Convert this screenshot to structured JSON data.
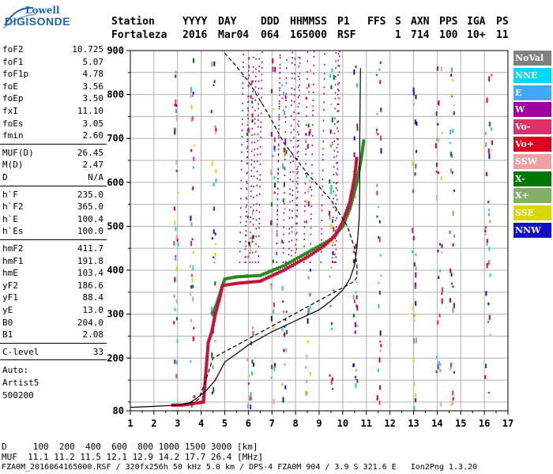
{
  "logo": {
    "line1": "Lowell",
    "line2": "DIGISONDE"
  },
  "header": {
    "labels": [
      "Station",
      "YYYY",
      "DAY",
      "DDD",
      "HHMMSS",
      "P1",
      "FFS",
      "S",
      "AXN",
      "PPS",
      "IGA",
      "PS"
    ],
    "values": [
      "Fortaleza",
      "2016",
      "Mar04",
      "064",
      "165000",
      "RSF",
      "1",
      "714",
      "100",
      "10+",
      "11"
    ]
  },
  "params": {
    "group1": [
      {
        "label": "foF2",
        "value": "10.725"
      },
      {
        "label": "foF1",
        "value": "5.07"
      },
      {
        "label": "foF1p",
        "value": "4.78"
      },
      {
        "label": "foE",
        "value": "3.56"
      },
      {
        "label": "foEp",
        "value": "3.50"
      },
      {
        "label": "fxI",
        "value": "11.10"
      },
      {
        "label": "foEs",
        "value": "3.05"
      },
      {
        "label": "fmin",
        "value": "2.60"
      }
    ],
    "group2": [
      {
        "label": "MUF(D)",
        "value": "26.45"
      },
      {
        "label": "M(D)",
        "value": "2.47"
      },
      {
        "label": "D",
        "value": "N/A"
      }
    ],
    "group3": [
      {
        "label": "h`F",
        "value": "235.0"
      },
      {
        "label": "h`F2",
        "value": "365.0"
      },
      {
        "label": "h`E",
        "value": "100.4"
      },
      {
        "label": "h`Es",
        "value": "100.0"
      }
    ],
    "group4": [
      {
        "label": "hmF2",
        "value": "411.7"
      },
      {
        "label": "hmF1",
        "value": "191.8"
      },
      {
        "label": "hmE",
        "value": "103.4"
      },
      {
        "label": "yF2",
        "value": "186.6"
      },
      {
        "label": "yF1",
        "value": "88.4"
      },
      {
        "label": "yE",
        "value": "13.0"
      },
      {
        "label": "B0",
        "value": "204.0"
      },
      {
        "label": "B1",
        "value": "2.08"
      }
    ],
    "clevel": {
      "label": "C-level",
      "value": "33"
    },
    "auto_label": "Auto:",
    "auto_value": "Artist5",
    "auto_version": "500200"
  },
  "legend": [
    {
      "label": "NoVal",
      "bg": "#808080",
      "fg": "#ffffff"
    },
    {
      "label": "NNE",
      "bg": "#00d8ff",
      "fg": "#ffffff"
    },
    {
      "label": "E",
      "bg": "#40a8ff",
      "fg": "#ffffff"
    },
    {
      "label": "W",
      "bg": "#a000a0",
      "fg": "#ffffff"
    },
    {
      "label": "Vo-",
      "bg": "#e0306a",
      "fg": "#ffffff"
    },
    {
      "label": "Vo+",
      "bg": "#e00020",
      "fg": "#ffffff"
    },
    {
      "label": "SSW",
      "bg": "#f0a0a0",
      "fg": "#ffffff"
    },
    {
      "label": "X-",
      "bg": "#007800",
      "fg": "#ffffff"
    },
    {
      "label": "X+",
      "bg": "#80b060",
      "fg": "#ffffff"
    },
    {
      "label": "SSE",
      "bg": "#d8d800",
      "fg": "#ffffff"
    },
    {
      "label": "NNW",
      "bg": "#1010c8",
      "fg": "#ffffff"
    }
  ],
  "chart_data": {
    "type": "scatter",
    "xlim": [
      1,
      17
    ],
    "ylim": [
      80,
      900
    ],
    "x_ticks": [
      1,
      2,
      3,
      4,
      5,
      6,
      7,
      8,
      9,
      10,
      11,
      12,
      13,
      14,
      15,
      16,
      17
    ],
    "y_ticks": [
      80,
      200,
      300,
      400,
      500,
      600,
      700,
      800,
      900
    ],
    "grid": true,
    "trace_o": [
      [
        2.8,
        93
      ],
      [
        3.2,
        93
      ],
      [
        3.6,
        96
      ],
      [
        4.1,
        100
      ],
      [
        4.3,
        235
      ],
      [
        4.45,
        260
      ],
      [
        4.6,
        300
      ],
      [
        4.8,
        340
      ],
      [
        4.9,
        365
      ],
      [
        5.5,
        370
      ],
      [
        6.5,
        375
      ],
      [
        7.5,
        400
      ],
      [
        8.5,
        430
      ],
      [
        9.2,
        455
      ],
      [
        9.7,
        480
      ],
      [
        10.0,
        510
      ],
      [
        10.3,
        555
      ],
      [
        10.5,
        610
      ],
      [
        10.6,
        660
      ]
    ],
    "trace_x": [
      [
        4.5,
        300
      ],
      [
        4.7,
        330
      ],
      [
        5.0,
        380
      ],
      [
        5.5,
        385
      ],
      [
        6.5,
        388
      ],
      [
        7.5,
        410
      ],
      [
        8.5,
        440
      ],
      [
        9.5,
        470
      ],
      [
        10.0,
        500
      ],
      [
        10.3,
        540
      ],
      [
        10.6,
        600
      ],
      [
        10.8,
        660
      ],
      [
        10.9,
        700
      ]
    ],
    "profile_solid": [
      [
        1,
        88
      ],
      [
        2,
        90
      ],
      [
        3,
        93
      ],
      [
        3.5,
        98
      ],
      [
        3.8,
        108
      ],
      [
        4.2,
        125
      ],
      [
        4.6,
        150
      ],
      [
        5.0,
        191
      ],
      [
        5.5,
        210
      ],
      [
        6.0,
        230
      ],
      [
        7.0,
        260
      ],
      [
        8.0,
        285
      ],
      [
        9.0,
        310
      ],
      [
        9.5,
        330
      ],
      [
        10.0,
        355
      ],
      [
        10.3,
        380
      ],
      [
        10.5,
        411
      ],
      [
        10.6,
        450
      ],
      [
        10.7,
        520
      ],
      [
        10.72,
        600
      ],
      [
        10.72,
        700
      ],
      [
        10.75,
        860
      ]
    ],
    "profile_dashed": [
      [
        3.0,
        93
      ],
      [
        3.4,
        96
      ],
      [
        3.7,
        100
      ],
      [
        3.8,
        103
      ],
      [
        3.9,
        107
      ],
      [
        4.2,
        150
      ],
      [
        4.5,
        200
      ],
      [
        10.5,
        375
      ],
      [
        10.6,
        385
      ],
      [
        10.6,
        411
      ],
      [
        10.5,
        450
      ],
      [
        10.2,
        500
      ],
      [
        9.5,
        560
      ],
      [
        8.5,
        620
      ],
      [
        7.5,
        690
      ],
      [
        6.8,
        760
      ],
      [
        6.0,
        830
      ],
      [
        5.4,
        870
      ],
      [
        4.9,
        900
      ]
    ]
  },
  "footer": {
    "d_line": "D     100  200  400  600  800 1000 1500 3000 [km]",
    "muf_line": "MUF  11.1 11.2 11.5 12.1 12.9 14.2 17.7 26.4 [MHz]",
    "file_line": "FZA0M_2016064165000.RSF / 320fx256h 50 kHz 5.0 km / DPS-4 FZA0M 904 / 3.9 S 321.6 E   Ion2Png 1.3.20"
  }
}
